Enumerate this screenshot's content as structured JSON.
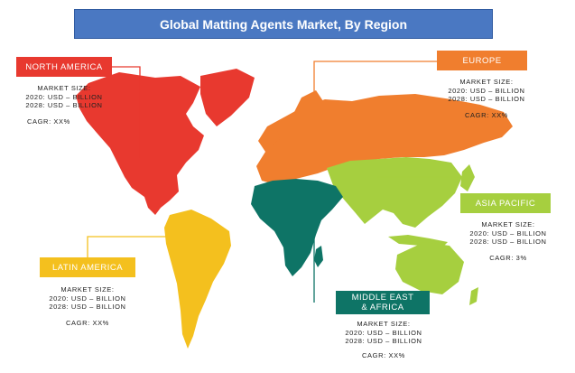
{
  "title": "Global Matting Agents Market, By Region",
  "colors": {
    "title_bg": "#4a78c2",
    "north_america": "#e8392f",
    "europe": "#f07e2e",
    "asia_pacific": "#a6cf3f",
    "middle_east_africa": "#0e7466",
    "latin_america": "#f4c01e"
  },
  "regions": {
    "north_america": {
      "name": "NORTH AMERICA",
      "market_size_label": "MARKET SIZE:",
      "line_2020": "2020: USD – BILLION",
      "line_2028": "2028: USD – BILLION",
      "cagr": "CAGR: XX%"
    },
    "europe": {
      "name": "EUROPE",
      "market_size_label": "MARKET SIZE:",
      "line_2020": "2020: USD – BILLION",
      "line_2028": "2028: USD – BILLION",
      "cagr": "CAGR: XX%"
    },
    "asia_pacific": {
      "name": "ASIA PACIFIC",
      "market_size_label": "MARKET SIZE:",
      "line_2020": "2020: USD – BILLION",
      "line_2028": "2028: USD – BILLION",
      "cagr": "CAGR: 3%"
    },
    "latin_america": {
      "name": "LATIN AMERICA",
      "market_size_label": "MARKET SIZE:",
      "line_2020": "2020: USD – BILLION",
      "line_2028": "2028: USD – BILLION",
      "cagr": "CAGR: XX%"
    },
    "middle_east_africa": {
      "name_line1": "MIDDLE EAST",
      "name_line2": "& AFRICA",
      "market_size_label": "MARKET SIZE:",
      "line_2020": "2020: USD – BILLION",
      "line_2028": "2028: USD – BILLION",
      "cagr": "CAGR: XX%"
    }
  }
}
